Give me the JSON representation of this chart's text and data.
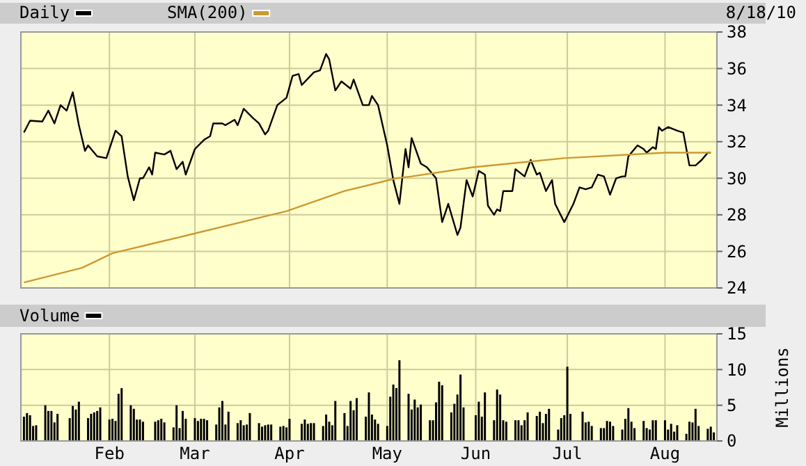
{
  "chart_data": [
    {
      "type": "line",
      "annotations": [
        "8/18/10"
      ],
      "legend": "top",
      "grid": true,
      "tick_labels": "y",
      "xlim": [
        "--01-03",
        "--08-19"
      ],
      "xticks": [
        {
          "value": "--02-01",
          "label": null
        },
        {
          "value": "--03-01",
          "label": null
        },
        {
          "value": "--04-01",
          "label": null
        },
        {
          "value": "--05-03",
          "label": null
        },
        {
          "value": "--06-01",
          "label": null
        },
        {
          "value": "--07-01",
          "label": null
        },
        {
          "value": "--08-02",
          "label": null
        }
      ],
      "ylim": [
        24,
        38
      ],
      "yticks": [
        24,
        26,
        28,
        30,
        32,
        34,
        36,
        38
      ],
      "series": [
        {
          "name": "Daily",
          "color": "#000000",
          "x": [
            "--01-04",
            "--01-06",
            "--01-10",
            "--01-12",
            "--01-14",
            "--01-16",
            "--01-18",
            "--01-20",
            "--01-22",
            "--01-24",
            "--01-25",
            "--01-28",
            "--01-31",
            "--02-03",
            "--02-05",
            "--02-07",
            "--02-09",
            "--02-11",
            "--02-12",
            "--02-14",
            "--02-15",
            "--02-16",
            "--02-19",
            "--02-21",
            "--02-23",
            "--02-25",
            "--02-26",
            "--03-01",
            "--03-04",
            "--03-06",
            "--03-07",
            "--03-10",
            "--03-11",
            "--03-14",
            "--03-15",
            "--03-17",
            "--03-20",
            "--03-22",
            "--03-24",
            "--03-25",
            "--03-28",
            "--03-31",
            "--04-02",
            "--04-04",
            "--04-05",
            "--04-09",
            "--04-11",
            "--04-13",
            "--04-14",
            "--04-16",
            "--04-18",
            "--04-21",
            "--04-22",
            "--04-25",
            "--04-27",
            "--04-28",
            "--04-30",
            "--05-03",
            "--05-05",
            "--05-07",
            "--05-09",
            "--05-10",
            "--05-11",
            "--05-14",
            "--05-16",
            "--05-19",
            "--05-21",
            "--05-23",
            "--05-26",
            "--05-27",
            "--05-29",
            "--05-31",
            "--06-02",
            "--06-04",
            "--06-05",
            "--06-07",
            "--06-08",
            "--06-09",
            "--06-10",
            "--06-13",
            "--06-14",
            "--06-17",
            "--06-19",
            "--06-21",
            "--06-22",
            "--06-24",
            "--06-26",
            "--06-27",
            "--06-30",
            "--07-03",
            "--07-05",
            "--07-07",
            "--07-09",
            "--07-11",
            "--07-13",
            "--07-15",
            "--07-17",
            "--07-19",
            "--07-20",
            "--07-21",
            "--07-24",
            "--07-26",
            "--07-27",
            "--07-29",
            "--07-30",
            "--07-31",
            "--08-01",
            "--08-03",
            "--08-06",
            "--08-08",
            "--08-10",
            "--08-12",
            "--08-14",
            "--08-16",
            "--08-17"
          ],
          "values": [
            32.5,
            33.15,
            33.1,
            33.7,
            33.0,
            34.0,
            33.7,
            34.7,
            32.9,
            31.5,
            31.8,
            31.2,
            31.1,
            32.6,
            32.3,
            30.1,
            28.8,
            30.0,
            30.0,
            30.6,
            30.2,
            31.4,
            31.3,
            31.5,
            30.5,
            30.9,
            30.2,
            31.6,
            32.1,
            32.3,
            33.0,
            33.0,
            32.9,
            33.2,
            32.9,
            33.8,
            33.3,
            33.0,
            32.4,
            32.6,
            34.0,
            34.4,
            35.6,
            35.7,
            35.1,
            35.8,
            35.9,
            36.8,
            36.5,
            34.8,
            35.3,
            34.9,
            35.4,
            34.0,
            34.0,
            34.5,
            34.0,
            31.8,
            29.9,
            28.6,
            31.6,
            30.6,
            32.2,
            30.8,
            30.6,
            30.0,
            27.6,
            28.6,
            26.9,
            27.3,
            29.9,
            29.0,
            30.4,
            30.2,
            28.5,
            28.0,
            28.3,
            28.2,
            29.3,
            29.3,
            30.5,
            30.1,
            31.0,
            30.2,
            30.3,
            29.3,
            29.9,
            28.6,
            27.6,
            28.6,
            29.5,
            29.4,
            29.5,
            30.2,
            30.1,
            29.1,
            30.0,
            30.1,
            30.1,
            31.2,
            31.8,
            31.6,
            31.4,
            31.7,
            31.6,
            32.8,
            32.6,
            32.8,
            32.6,
            32.5,
            30.7,
            30.7,
            31.0,
            31.4,
            31.4
          ]
        },
        {
          "name": "SMA(200)",
          "color": "#cc9933",
          "x": [
            "--01-04",
            "--01-23",
            "--02-02",
            "--02-17",
            "--02-27",
            "--03-31",
            "--04-19",
            "--05-06",
            "--05-11",
            "--05-31",
            "--06-30",
            "--08-02",
            "--08-17"
          ],
          "values": [
            24.3,
            25.1,
            25.9,
            26.5,
            26.9,
            28.2,
            29.3,
            30.0,
            30.1,
            30.6,
            31.1,
            31.4,
            31.4
          ]
        }
      ]
    },
    {
      "type": "bar",
      "ylabel": "Millions",
      "legend": "top",
      "grid": true,
      "xlim": [
        "--01-03",
        "--08-19"
      ],
      "xticks": [
        {
          "value": "--02-01",
          "label": "Feb"
        },
        {
          "value": "--03-01",
          "label": "Mar"
        },
        {
          "value": "--04-01",
          "label": "Apr"
        },
        {
          "value": "--05-03",
          "label": "May"
        },
        {
          "value": "--06-01",
          "label": "Jun"
        },
        {
          "value": "--07-01",
          "label": "Jul"
        },
        {
          "value": "--08-02",
          "label": "Aug"
        }
      ],
      "ylim": [
        0,
        15
      ],
      "yticks": [
        0,
        5,
        10,
        15
      ],
      "series": [
        {
          "name": "Volume",
          "color": "#000000",
          "x": [
            "--01-04",
            "--01-05",
            "--01-06",
            "--01-07",
            "--01-08",
            "--01-11",
            "--01-12",
            "--01-13",
            "--01-14",
            "--01-15",
            "--01-19",
            "--01-20",
            "--01-21",
            "--01-22",
            "--01-25",
            "--01-26",
            "--01-27",
            "--01-28",
            "--01-29",
            "--02-01",
            "--02-02",
            "--02-03",
            "--02-04",
            "--02-05",
            "--02-08",
            "--02-09",
            "--02-10",
            "--02-11",
            "--02-12",
            "--02-16",
            "--02-17",
            "--02-18",
            "--02-19",
            "--02-22",
            "--02-23",
            "--02-24",
            "--02-25",
            "--02-26",
            "--03-01",
            "--03-02",
            "--03-03",
            "--03-04",
            "--03-05",
            "--03-08",
            "--03-09",
            "--03-10",
            "--03-11",
            "--03-12",
            "--03-15",
            "--03-16",
            "--03-17",
            "--03-18",
            "--03-19",
            "--03-22",
            "--03-23",
            "--03-24",
            "--03-25",
            "--03-26",
            "--03-29",
            "--03-30",
            "--03-31",
            "--04-01",
            "--04-05",
            "--04-06",
            "--04-07",
            "--04-08",
            "--04-09",
            "--04-12",
            "--04-13",
            "--04-14",
            "--04-15",
            "--04-16",
            "--04-19",
            "--04-20",
            "--04-21",
            "--04-22",
            "--04-23",
            "--04-26",
            "--04-27",
            "--04-28",
            "--04-29",
            "--04-30",
            "--05-03",
            "--05-04",
            "--05-05",
            "--05-06",
            "--05-07",
            "--05-10",
            "--05-11",
            "--05-12",
            "--05-13",
            "--05-14",
            "--05-17",
            "--05-18",
            "--05-19",
            "--05-20",
            "--05-21",
            "--05-24",
            "--05-25",
            "--05-26",
            "--05-27",
            "--05-28",
            "--06-01",
            "--06-02",
            "--06-03",
            "--06-04",
            "--06-07",
            "--06-08",
            "--06-09",
            "--06-10",
            "--06-11",
            "--06-14",
            "--06-15",
            "--06-16",
            "--06-17",
            "--06-18",
            "--06-21",
            "--06-22",
            "--06-23",
            "--06-24",
            "--06-25",
            "--06-28",
            "--06-29",
            "--06-30",
            "--07-01",
            "--07-02",
            "--07-06",
            "--07-07",
            "--07-08",
            "--07-09",
            "--07-12",
            "--07-13",
            "--07-14",
            "--07-15",
            "--07-16",
            "--07-19",
            "--07-20",
            "--07-21",
            "--07-22",
            "--07-23",
            "--07-26",
            "--07-27",
            "--07-28",
            "--07-29",
            "--07-30",
            "--08-02",
            "--08-03",
            "--08-04",
            "--08-05",
            "--08-06",
            "--08-09",
            "--08-10",
            "--08-11",
            "--08-12",
            "--08-13",
            "--08-16",
            "--08-17",
            "--08-18"
          ],
          "values": [
            3.4,
            3.9,
            3.6,
            2.1,
            2.2,
            5.0,
            4.2,
            4.2,
            2.6,
            3.8,
            3.2,
            4.9,
            4.4,
            5.5,
            3.2,
            3.8,
            4.0,
            4.2,
            4.7,
            3.0,
            3.1,
            2.8,
            6.6,
            7.4,
            5.0,
            4.5,
            3.0,
            3.0,
            2.7,
            2.7,
            2.9,
            3.1,
            2.6,
            1.9,
            5.0,
            1.8,
            4.2,
            3.1,
            3.2,
            2.8,
            3.1,
            3.1,
            2.9,
            2.3,
            4.7,
            5.6,
            2.3,
            4.1,
            2.5,
            2.9,
            2.2,
            2.3,
            3.9,
            2.5,
            2.0,
            2.2,
            2.3,
            2.3,
            2.0,
            2.1,
            1.9,
            3.1,
            2.4,
            3.0,
            2.4,
            2.5,
            2.5,
            2.1,
            3.7,
            2.7,
            2.2,
            5.6,
            3.9,
            2.1,
            5.6,
            4.3,
            6.0,
            3.4,
            6.8,
            3.7,
            3.0,
            2.4,
            2.1,
            6.2,
            7.9,
            7.4,
            11.3,
            6.6,
            4.4,
            5.8,
            4.7,
            5.1,
            2.9,
            2.9,
            5.4,
            8.3,
            7.8,
            4.0,
            5.2,
            6.5,
            9.3,
            4.7,
            3.6,
            5.5,
            3.4,
            6.8,
            2.9,
            7.2,
            6.5,
            2.9,
            2.7,
            2.9,
            2.9,
            2.2,
            2.9,
            4.0,
            3.5,
            4.1,
            2.5,
            3.8,
            4.5,
            1.6,
            3.2,
            3.6,
            10.4,
            3.8,
            4.1,
            2.6,
            2.7,
            2.1,
            1.8,
            1.8,
            2.8,
            2.7,
            2.1,
            1.6,
            3.1,
            4.6,
            2.7,
            1.8,
            2.8,
            1.8,
            1.6,
            2.9,
            2.9,
            2.9,
            1.6,
            2.4,
            1.3,
            2.2,
            1.0,
            2.7,
            2.6,
            4.5,
            2.1,
            1.7,
            2.0,
            1.2
          ]
        }
      ]
    }
  ]
}
